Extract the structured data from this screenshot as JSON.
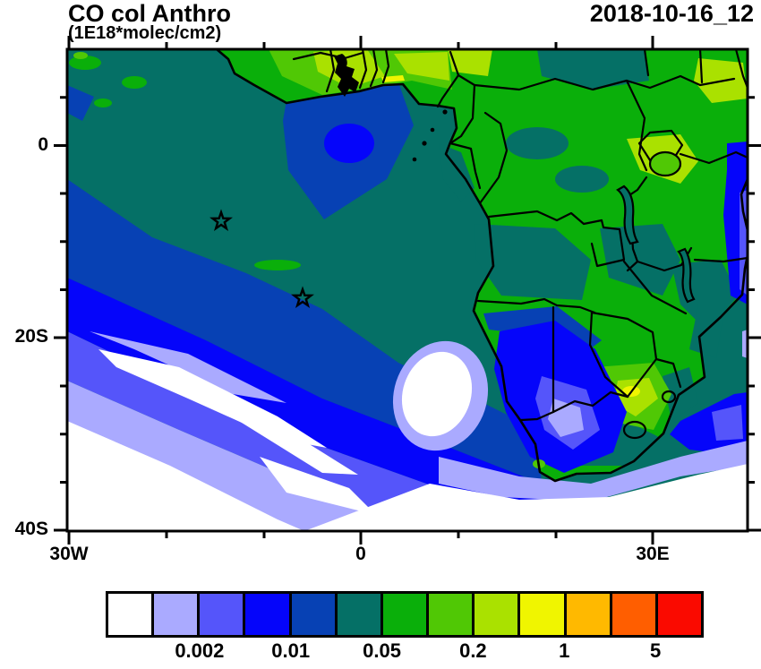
{
  "header": {
    "title": "CO col Anthro",
    "subtitle": "(1E18*molec/cm2)",
    "date_label": "2018-10-16_12"
  },
  "axes": {
    "lat_tick_labels": [
      "0",
      "20S",
      "40S"
    ],
    "lon_tick_labels": [
      "30W",
      "0",
      "30E"
    ]
  },
  "colorbar": {
    "labels": [
      "0.002",
      "0.01",
      "0.05",
      "0.2",
      "1",
      "5"
    ],
    "colors": [
      "#ffffff",
      "#aaaaff",
      "#5555fa",
      "#0505fa",
      "#0741b4",
      "#057066",
      "#0aaf0a",
      "#50c805",
      "#aae100",
      "#f0f500",
      "#ffb900",
      "#ff5e00",
      "#fa0a00"
    ]
  },
  "chart_data": {
    "type": "heatmap",
    "subtype": "filled-contour latitude-longitude map",
    "title": "CO col Anthro",
    "units_label": "(1E18*molec/cm2)",
    "timestamp": "2018-10-16_12",
    "region": "Africa and South Atlantic",
    "lon_range_deg": [
      -30,
      40
    ],
    "lat_range_deg": [
      -40,
      10
    ],
    "lon_ticks_labeled": [
      "30W",
      "0",
      "30E"
    ],
    "lat_ticks_labeled": [
      "0",
      "20S",
      "40S"
    ],
    "minor_tick_spacing": {
      "lon_deg": 10,
      "lat_deg": 5
    },
    "colorbar_tick_values": [
      0.002,
      0.01,
      0.05,
      0.2,
      1,
      5
    ],
    "colorbar_colors": [
      "#ffffff",
      "#aaaaff",
      "#5555fa",
      "#0505fa",
      "#0741b4",
      "#057066",
      "#0aaf0a",
      "#50c805",
      "#aae100",
      "#f0f500",
      "#ffb900",
      "#ff5e00",
      "#fa0a00"
    ],
    "markers": [
      {
        "shape": "open-star",
        "lon_deg": -14,
        "lat_deg": -8
      },
      {
        "shape": "open-star",
        "lon_deg": -6,
        "lat_deg": -16
      }
    ],
    "regions_summary": [
      "Central African landmass mostly 0.1-0.2 (green) with 0.05-0.1 (teal) mottling",
      "Gulf of Guinea coastal countries 0.2-0.5 (yellow-green), small ~0.5-1 (yellow) sliver near Benin coast",
      "South African Highveld local maximum 0.2-1 (bright green / yellow-green)",
      "Tropical Atlantic off West Africa 0.05-0.1 (teal) with 0.01-0.05 (blue) tongue near the equator",
      "South-west Atlantic decreasing diagonally through 0.02, 0.01, 0.005, 0.002 bands to <0.001 (white)",
      "Namibia / western South Africa low tongue 0.005-0.02 (blue-violet)",
      "Southern Ocean south of South Africa <0.001 (white)"
    ]
  }
}
